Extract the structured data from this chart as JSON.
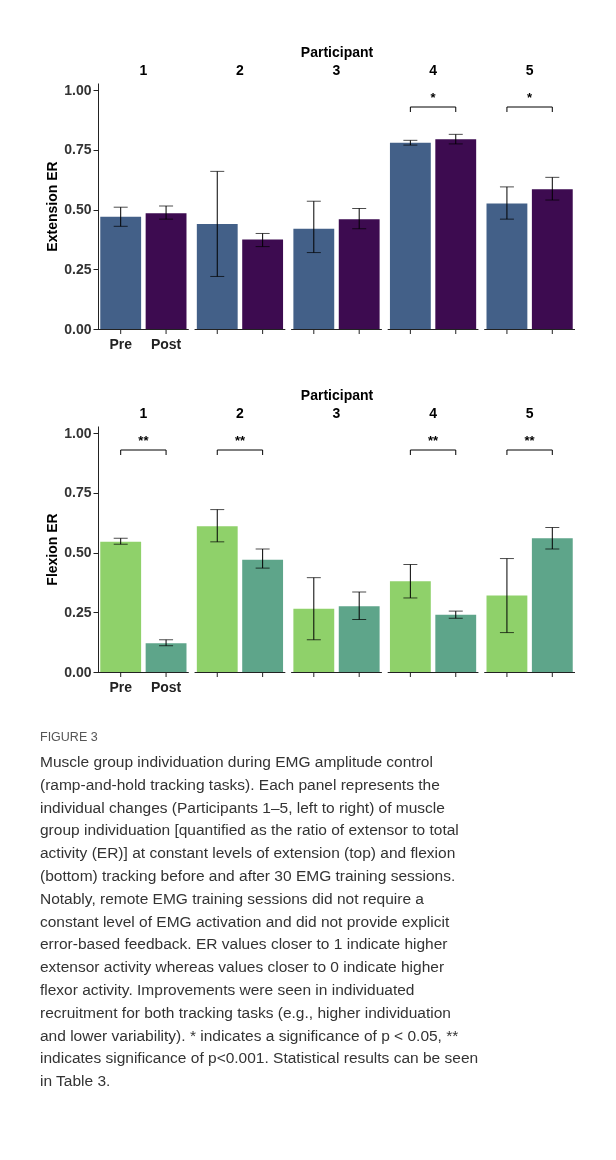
{
  "chart_data": [
    {
      "type": "bar",
      "xlabel": "Participant",
      "ylabel": "Extension ER",
      "categories": [
        "1",
        "2",
        "3",
        "4",
        "5"
      ],
      "ylim": [
        0,
        1.03
      ],
      "yticks": [
        {
          "value": 0,
          "label": "0.00"
        },
        {
          "value": 0.25,
          "label": "0.25"
        },
        {
          "value": 0.5,
          "label": "0.50"
        },
        {
          "value": 0.75,
          "label": "0.75"
        },
        {
          "value": 1,
          "label": "1.00"
        }
      ],
      "annotations": [
        "*",
        "*"
      ],
      "series": [
        {
          "name": "Pre",
          "color": "#436088",
          "values": [
            0.47,
            0.44,
            0.42,
            0.78,
            0.525
          ],
          "errors": [
            [
              0.43,
              0.51
            ],
            [
              0.22,
              0.66
            ],
            [
              0.32,
              0.535
            ],
            [
              0.77,
              0.79
            ],
            [
              0.46,
              0.595
            ]
          ]
        },
        {
          "name": "Post",
          "color": "#3d0b50",
          "values": [
            0.485,
            0.375,
            0.46,
            0.795,
            0.585
          ],
          "errors": [
            [
              0.46,
              0.515
            ],
            [
              0.345,
              0.4
            ],
            [
              0.42,
              0.505
            ],
            [
              0.775,
              0.815
            ],
            [
              0.54,
              0.635
            ]
          ]
        }
      ]
    },
    {
      "type": "bar",
      "xlabel": "Participant",
      "ylabel": "Flexion ER",
      "categories": [
        "1",
        "2",
        "3",
        "4",
        "5"
      ],
      "ylim": [
        0,
        1.03
      ],
      "yticks": [
        {
          "value": 0,
          "label": "0.00"
        },
        {
          "value": 0.25,
          "label": "0.25"
        },
        {
          "value": 0.5,
          "label": "0.50"
        },
        {
          "value": 0.75,
          "label": "0.75"
        },
        {
          "value": 1,
          "label": "1.00"
        }
      ],
      "annotations": [
        "**",
        "**",
        "**",
        "**"
      ],
      "series": [
        {
          "name": "Pre",
          "color": "#8fd16a",
          "values": [
            0.545,
            0.61,
            0.265,
            0.38,
            0.32
          ],
          "errors": [
            [
              0.535,
              0.56
            ],
            [
              0.545,
              0.68
            ],
            [
              0.135,
              0.395
            ],
            [
              0.31,
              0.45
            ],
            [
              0.165,
              0.475
            ]
          ]
        },
        {
          "name": "Post",
          "color": "#5ea58a",
          "values": [
            0.12,
            0.47,
            0.275,
            0.24,
            0.56
          ],
          "errors": [
            [
              0.11,
              0.135
            ],
            [
              0.435,
              0.515
            ],
            [
              0.22,
              0.335
            ],
            [
              0.225,
              0.255
            ],
            [
              0.515,
              0.605
            ]
          ]
        }
      ]
    },
    {
      "type": "other",
      "title": "FIGURE 3",
      "annotations": [
        "Muscle group individuation during EMG amplitude control",
        "(ramp-and-hold tracking tasks). Each panel represents the",
        "individual changes (Participants 1–5, left to right) of muscle",
        "group individuation [quantified as the ratio of extensor to total",
        "activity (ER)] at constant levels of extension (top) and flexion",
        "(bottom) tracking before and after 30 EMG training sessions.",
        "Notably, remote EMG training sessions did not require a",
        "constant level of EMG activation and did not provide explicit",
        "error-based feedback. ER values closer to 1 indicate higher",
        "extensor activity whereas values closer to 0 indicate higher",
        "flexor activity. Improvements were seen in individuated",
        "recruitment for both tracking tasks (e.g., higher individuation",
        "and lower variability). * indicates a significance of p < 0.05, **",
        "indicates significance of p<0.001. Statistical results can be seen",
        "in Table 3."
      ]
    }
  ]
}
